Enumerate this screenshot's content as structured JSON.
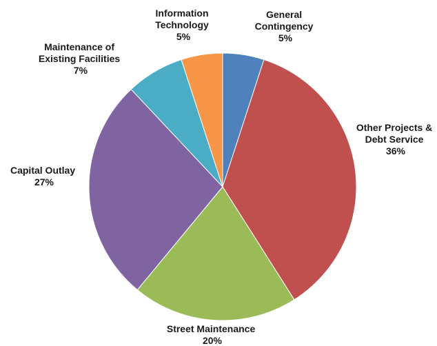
{
  "chart_data": {
    "type": "pie",
    "title": "",
    "start_angle_deg": 0,
    "direction": "clockwise",
    "slices": [
      {
        "name": "General Contingency",
        "label_lines": [
          "General",
          "Contingency"
        ],
        "percent_label": "5%",
        "value": 5,
        "color": "#4f81bd"
      },
      {
        "name": "Other Projects & Debt Service",
        "label_lines": [
          "Other Projects &",
          "Debt Service"
        ],
        "percent_label": "36%",
        "value": 36,
        "color": "#c0504d"
      },
      {
        "name": "Street Maintenance",
        "label_lines": [
          "Street Maintenance"
        ],
        "percent_label": "20%",
        "value": 20,
        "color": "#9bbb59"
      },
      {
        "name": "Capital Outlay",
        "label_lines": [
          "Capital Outlay"
        ],
        "percent_label": "27%",
        "value": 27,
        "color": "#8064a2"
      },
      {
        "name": "Maintenance of Existing Facilities",
        "label_lines": [
          "Maintenance of",
          "Existing Facilities"
        ],
        "percent_label": "7%",
        "value": 7,
        "color": "#4bacc6"
      },
      {
        "name": "Information Technology",
        "label_lines": [
          "Information",
          "Technology"
        ],
        "percent_label": "5%",
        "value": 5,
        "color": "#f79646"
      }
    ],
    "legend": "none",
    "data_labels": "outside"
  }
}
